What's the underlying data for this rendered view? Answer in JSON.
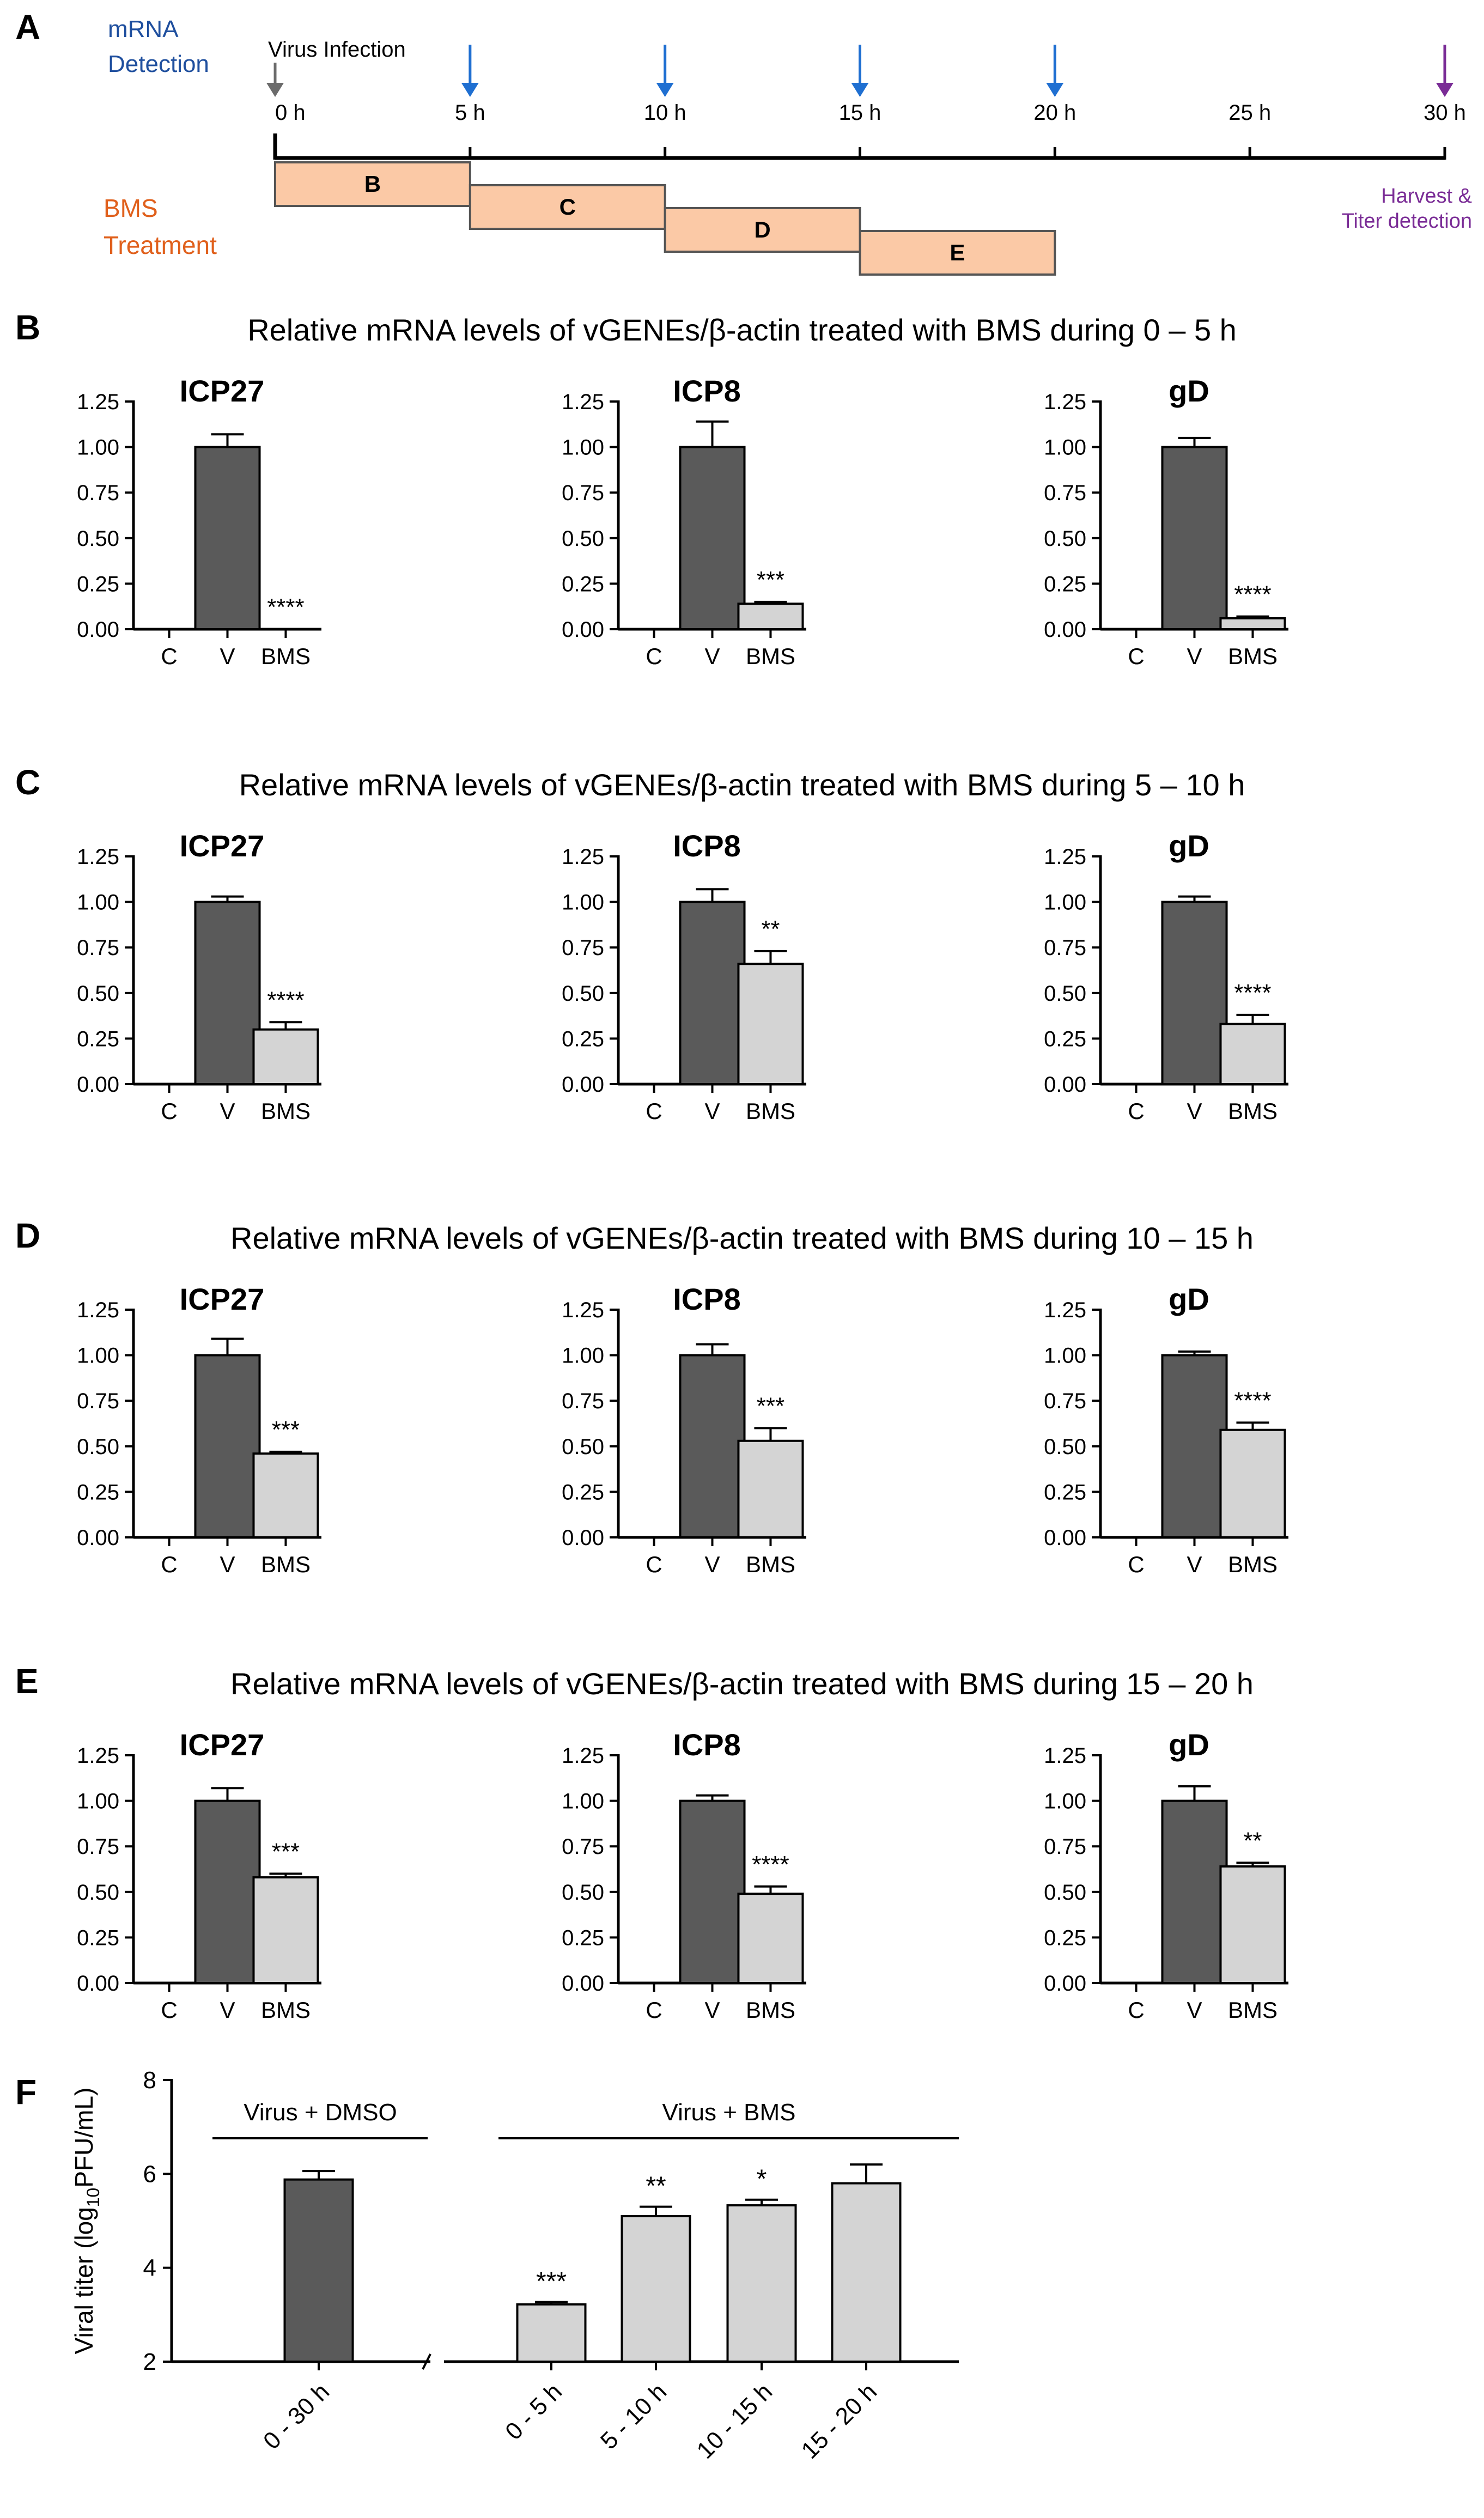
{
  "panel_letters": {
    "A": "A",
    "B": "B",
    "C": "C",
    "D": "D",
    "E": "E",
    "F": "F"
  },
  "timeline": {
    "mrna_label_1": "mRNA",
    "mrna_label_2": "Detection",
    "infection_label": "Virus Infection",
    "ticks": [
      "0 h",
      "5 h",
      "10 h",
      "15 h",
      "20 h",
      "25 h",
      "30 h"
    ],
    "tick_hours": [
      0,
      5,
      10,
      15,
      20,
      25,
      30
    ],
    "mrna_detection_hours": [
      5,
      10,
      15,
      20
    ],
    "harvest_hour": 30,
    "harvest_label_1": "Harvest &",
    "harvest_label_2": "Titer detection",
    "treatment_label_1": "BMS",
    "treatment_label_2": "Treatment",
    "treatment_boxes": [
      {
        "label": "B",
        "start_h": 0,
        "end_h": 5
      },
      {
        "label": "C",
        "start_h": 5,
        "end_h": 10
      },
      {
        "label": "D",
        "start_h": 10,
        "end_h": 15
      },
      {
        "label": "E",
        "start_h": 15,
        "end_h": 20
      }
    ],
    "colors": {
      "infection_arrow": "#6b6b6b",
      "mrna_arrow": "#1f6fd1",
      "harvest_arrow": "#7a2c96",
      "mrna_text": "#1f4f9e",
      "treatment_text": "#e0601c",
      "harvest_text": "#7a2c96",
      "box_fill": "#fbc9a6",
      "box_stroke": "#555555"
    }
  },
  "colors": {
    "dark_bar": "#5a5a5a",
    "light_bar": "#d4d4d4",
    "axis": "#000000"
  },
  "chart_data": [
    {
      "panel": "B",
      "type": "bar",
      "title": "Relative mRNA levels of vGENEs/β-actin treated with BMS during 0 – 5 h",
      "categories": [
        "C",
        "V",
        "BMS"
      ],
      "ylim": [
        0,
        1.25
      ],
      "yticks": [
        "0.00",
        "0.25",
        "0.50",
        "0.75",
        "1.00",
        "1.25"
      ],
      "subplots": [
        {
          "gene": "ICP27",
          "values": [
            0,
            1.0,
            0.0
          ],
          "errors": [
            0,
            0.07,
            0
          ],
          "significance": [
            "",
            "",
            "****"
          ]
        },
        {
          "gene": "ICP8",
          "values": [
            0,
            1.0,
            0.14
          ],
          "errors": [
            0,
            0.14,
            0.01
          ],
          "significance": [
            "",
            "",
            "***"
          ]
        },
        {
          "gene": "gD",
          "values": [
            0,
            1.0,
            0.06
          ],
          "errors": [
            0,
            0.05,
            0.01
          ],
          "significance": [
            "",
            "",
            "****"
          ]
        }
      ]
    },
    {
      "panel": "C",
      "type": "bar",
      "title": "Relative mRNA levels of vGENEs/β-actin treated with BMS during 5 – 10 h",
      "categories": [
        "C",
        "V",
        "BMS"
      ],
      "ylim": [
        0,
        1.25
      ],
      "yticks": [
        "0.00",
        "0.25",
        "0.50",
        "0.75",
        "1.00",
        "1.25"
      ],
      "subplots": [
        {
          "gene": "ICP27",
          "values": [
            0,
            1.0,
            0.3
          ],
          "errors": [
            0,
            0.03,
            0.04
          ],
          "significance": [
            "",
            "",
            "****"
          ]
        },
        {
          "gene": "ICP8",
          "values": [
            0,
            1.0,
            0.66
          ],
          "errors": [
            0,
            0.07,
            0.07
          ],
          "significance": [
            "",
            "",
            "**"
          ]
        },
        {
          "gene": "gD",
          "values": [
            0,
            1.0,
            0.33
          ],
          "errors": [
            0,
            0.03,
            0.05
          ],
          "significance": [
            "",
            "",
            "****"
          ]
        }
      ]
    },
    {
      "panel": "D",
      "type": "bar",
      "title": "Relative mRNA levels of vGENEs/β-actin treated with BMS during 10 – 15 h",
      "categories": [
        "C",
        "V",
        "BMS"
      ],
      "ylim": [
        0,
        1.25
      ],
      "yticks": [
        "0.00",
        "0.25",
        "0.50",
        "0.75",
        "1.00",
        "1.25"
      ],
      "subplots": [
        {
          "gene": "ICP27",
          "values": [
            0,
            1.0,
            0.46
          ],
          "errors": [
            0,
            0.09,
            0.01
          ],
          "significance": [
            "",
            "",
            "***"
          ]
        },
        {
          "gene": "ICP8",
          "values": [
            0,
            1.0,
            0.53
          ],
          "errors": [
            0,
            0.06,
            0.07
          ],
          "significance": [
            "",
            "",
            "***"
          ]
        },
        {
          "gene": "gD",
          "values": [
            0,
            1.0,
            0.59
          ],
          "errors": [
            0,
            0.02,
            0.04
          ],
          "significance": [
            "",
            "",
            "****"
          ]
        }
      ]
    },
    {
      "panel": "E",
      "type": "bar",
      "title": "Relative mRNA levels of vGENEs/β-actin treated with BMS during 15 – 20 h",
      "categories": [
        "C",
        "V",
        "BMS"
      ],
      "ylim": [
        0,
        1.25
      ],
      "yticks": [
        "0.00",
        "0.25",
        "0.50",
        "0.75",
        "1.00",
        "1.25"
      ],
      "subplots": [
        {
          "gene": "ICP27",
          "values": [
            0,
            1.0,
            0.58
          ],
          "errors": [
            0,
            0.07,
            0.02
          ],
          "significance": [
            "",
            "",
            "***"
          ]
        },
        {
          "gene": "ICP8",
          "values": [
            0,
            1.0,
            0.49
          ],
          "errors": [
            0,
            0.03,
            0.04
          ],
          "significance": [
            "",
            "",
            "****"
          ]
        },
        {
          "gene": "gD",
          "values": [
            0,
            1.0,
            0.64
          ],
          "errors": [
            0,
            0.08,
            0.02
          ],
          "significance": [
            "",
            "",
            "**"
          ]
        }
      ]
    },
    {
      "panel": "F",
      "type": "bar",
      "ylabel_main": "Viral titer (log",
      "ylabel_sub": "10",
      "ylabel_end": "PFU/mL)",
      "ylim": [
        2,
        8
      ],
      "yticks": [
        "2",
        "4",
        "6",
        "8"
      ],
      "group_labels": [
        "Virus + DMSO",
        "Virus + BMS"
      ],
      "categories": [
        "0 - 30 h",
        "0 - 5 h",
        "5 - 10 h",
        "10 - 15 h",
        "15 - 20 h"
      ],
      "groups": [
        0,
        1,
        1,
        1,
        1
      ],
      "values": [
        5.88,
        3.22,
        5.1,
        5.33,
        5.8
      ],
      "errors": [
        0.18,
        0.05,
        0.2,
        0.12,
        0.4
      ],
      "significance": [
        "",
        "***",
        "**",
        "*",
        ""
      ]
    }
  ]
}
